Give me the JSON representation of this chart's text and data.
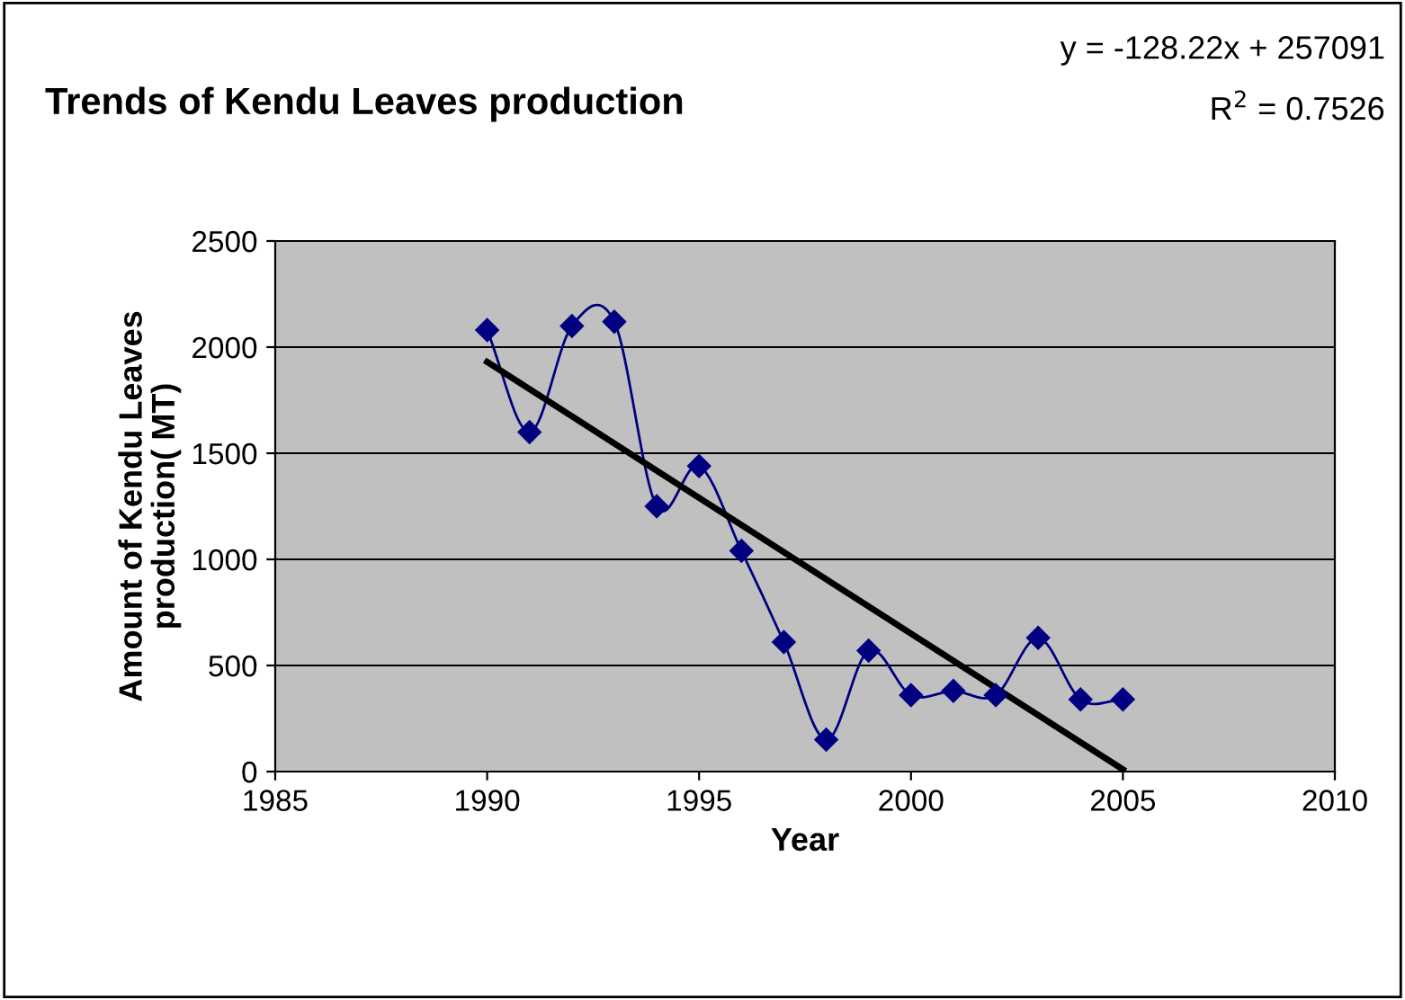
{
  "chart_data": {
    "type": "line",
    "title": "Trends of Kendu Leaves production",
    "xlabel": "Year",
    "ylabel": "Amount of Kendu Leaves\nproduction( MT)",
    "annotations": [
      "y = -128.22x + 257091",
      "R$^{2}$ = 0.7526"
    ],
    "series": [
      {
        "color": "#000080",
        "marker": "diamond",
        "x": [
          1990,
          1991,
          1992,
          1993,
          1994,
          1995,
          1996,
          1997,
          1998,
          1999,
          2000,
          2001,
          2002,
          2003,
          2004,
          2005
        ],
        "values": [
          2080,
          1600,
          2100,
          2120,
          1250,
          1440,
          1040,
          610,
          150,
          570,
          360,
          380,
          360,
          630,
          340,
          340
        ]
      },
      {
        "color": "#000000",
        "marker": "none",
        "x": [
          1990,
          2005
        ],
        "values": [
          1930,
          10
        ]
      }
    ],
    "xlim": [
      1985,
      2010
    ],
    "xticks": [
      1985,
      1990,
      1995,
      2000,
      2005,
      2010
    ],
    "ylim": [
      0,
      2500
    ],
    "yticks": [
      0,
      500,
      1000,
      1500,
      2000,
      2500
    ],
    "grid": "y",
    "legend": false
  }
}
